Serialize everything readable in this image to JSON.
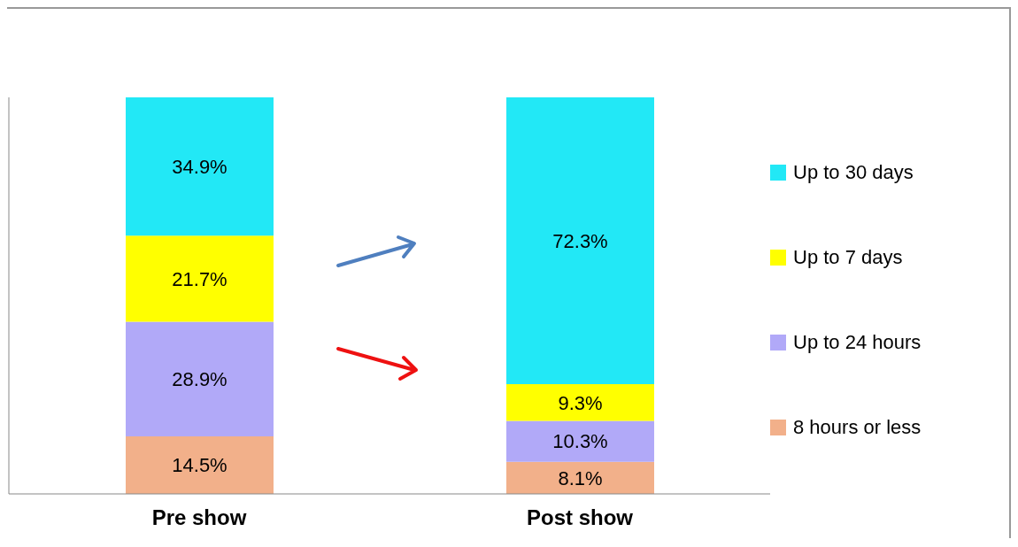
{
  "chart_data": {
    "type": "bar",
    "stacked": true,
    "categories": [
      "Pre show",
      "Post show"
    ],
    "series": [
      {
        "name": "8 hours or less",
        "color": "#f2b08a",
        "values": [
          14.5,
          8.1
        ],
        "value_labels": [
          "14.5%",
          "8.1%"
        ]
      },
      {
        "name": "Up to 24 hours",
        "color": "#b1a9f8",
        "values": [
          28.9,
          10.3
        ],
        "value_labels": [
          "28.9%",
          "10.3%"
        ]
      },
      {
        "name": "Up to 7 days",
        "color": "#ffff00",
        "values": [
          21.7,
          9.3
        ],
        "value_labels": [
          "21.7%",
          "9.3%"
        ]
      },
      {
        "name": "Up to 30 days",
        "color": "#22e8f6",
        "values": [
          34.9,
          72.3
        ],
        "value_labels": [
          "34.9%",
          "72.3%"
        ]
      }
    ],
    "legend": "right",
    "grid": false
  }
}
